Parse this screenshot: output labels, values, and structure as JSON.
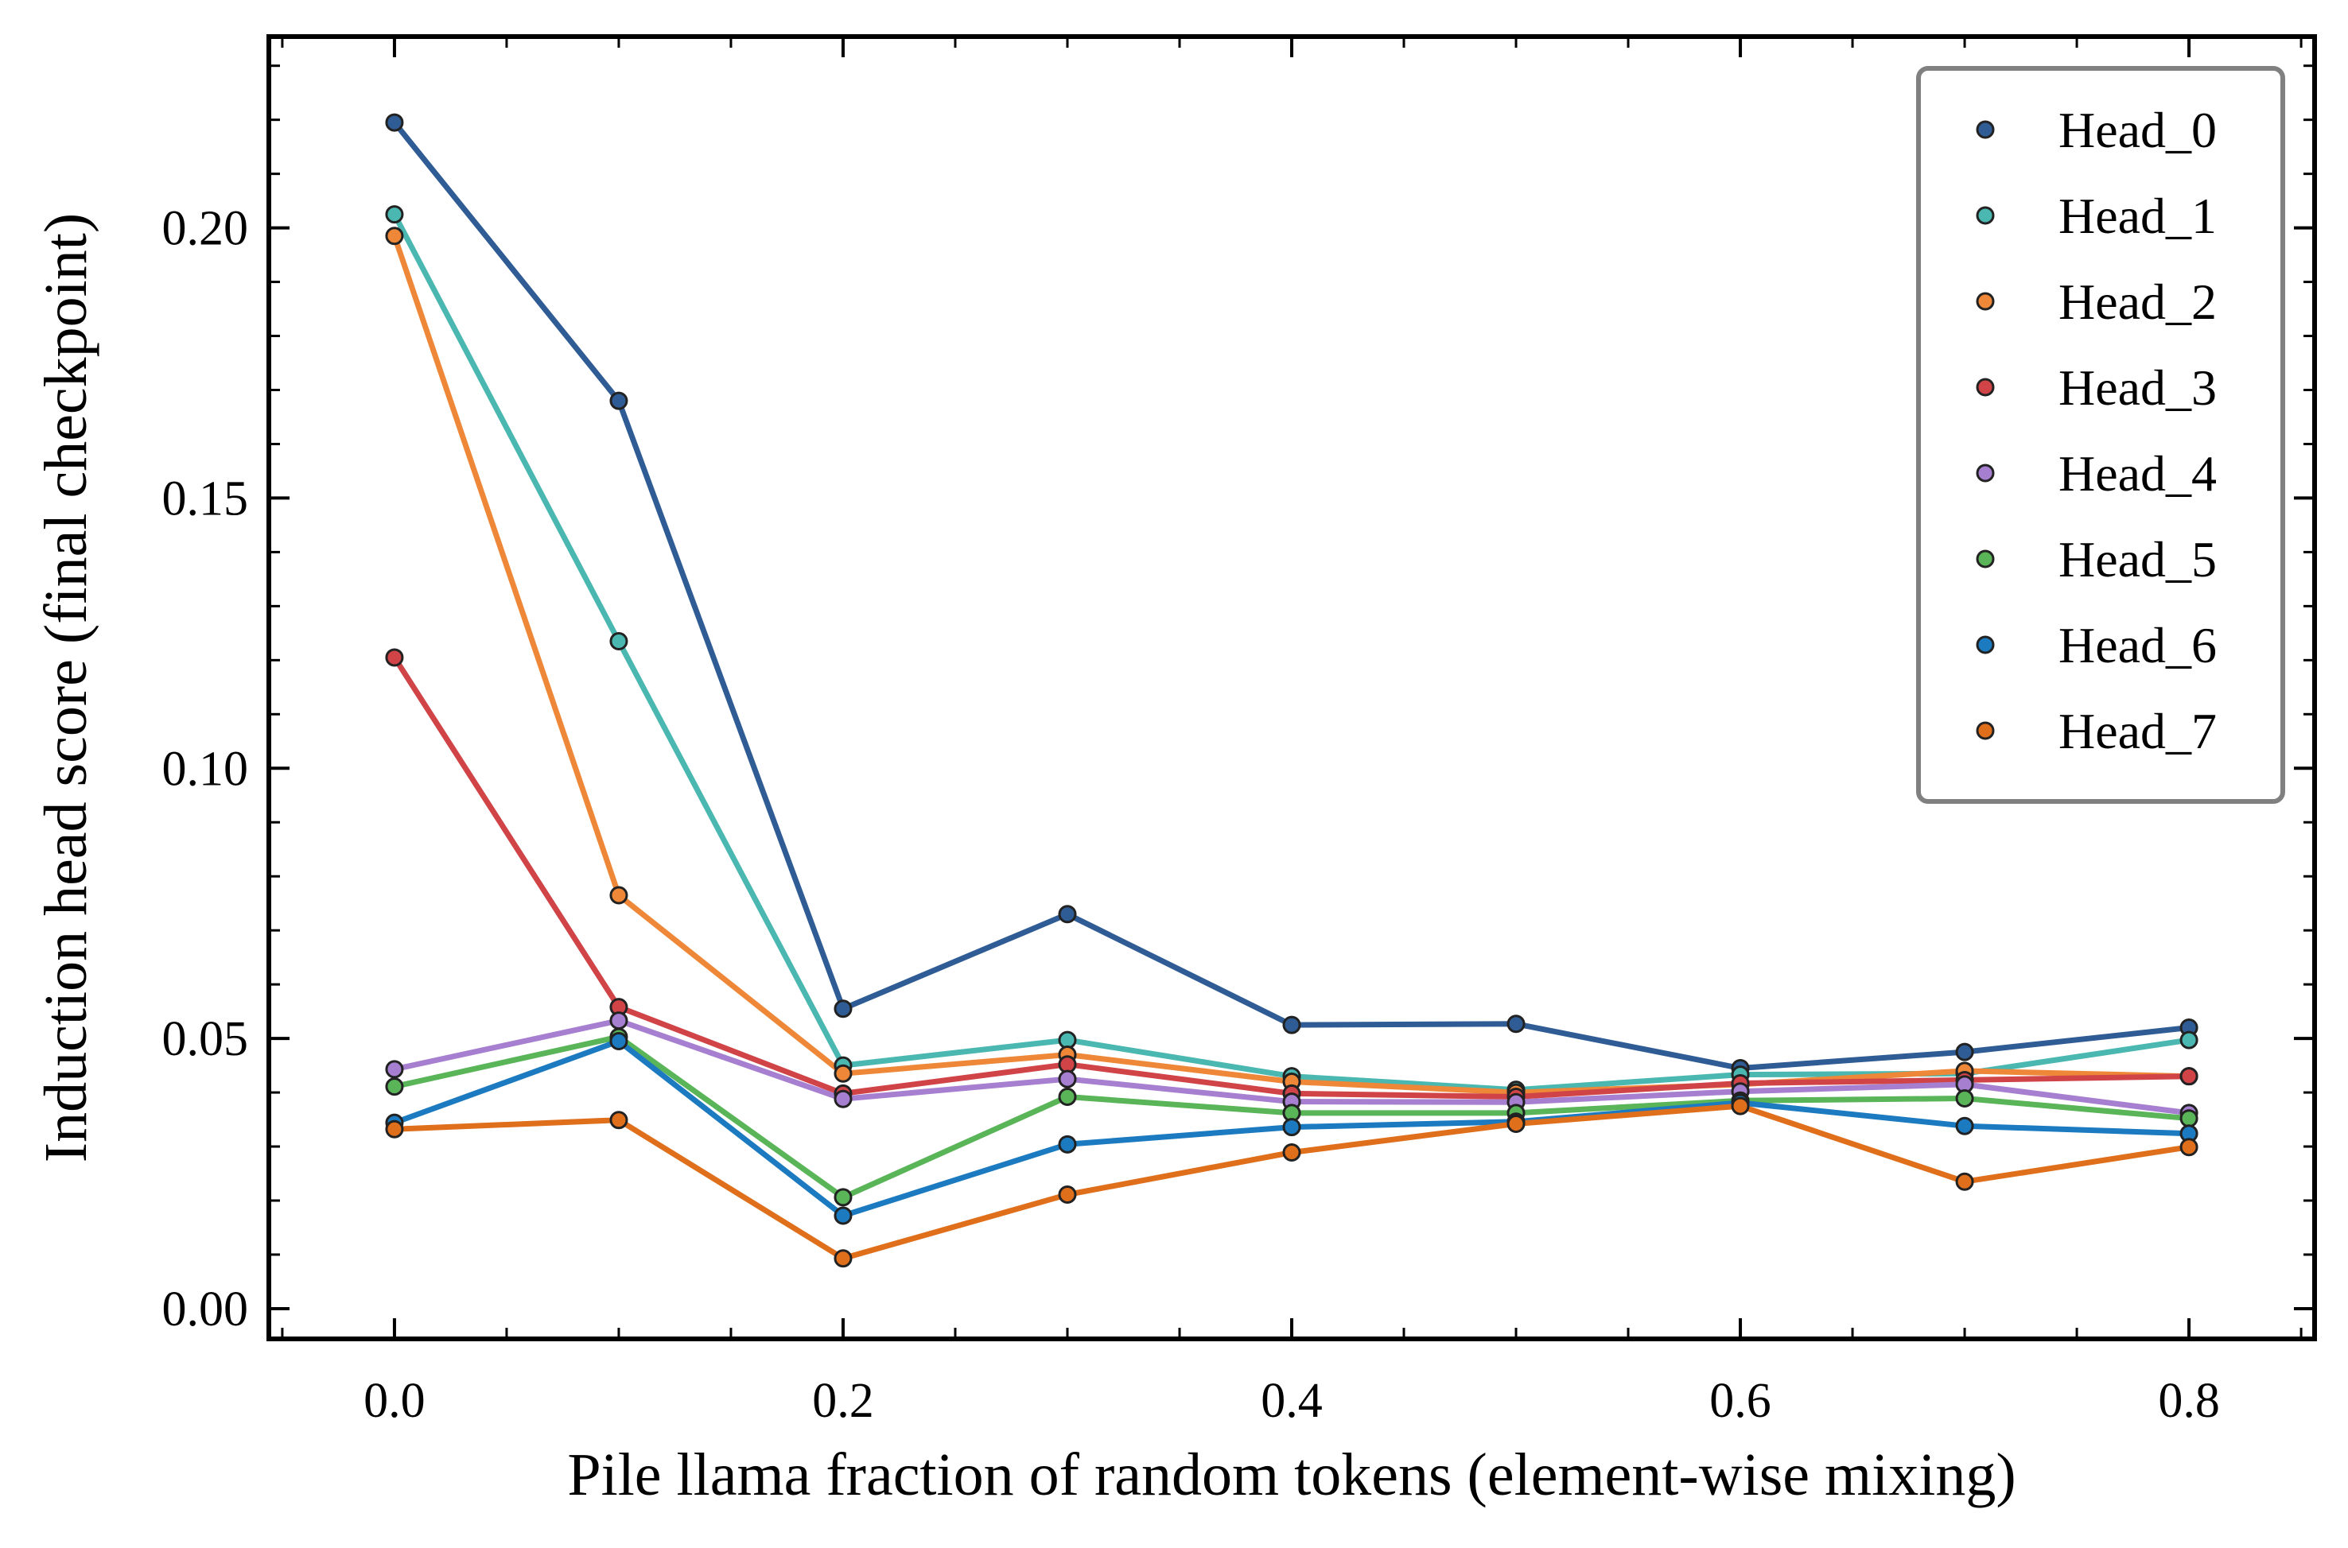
{
  "chart_data": {
    "type": "line",
    "title": "",
    "xlabel": "Pile llama fraction of random tokens (element-wise mixing)",
    "ylabel": "Induction head score (final checkpoint)",
    "xlim": [
      -0.056,
      0.856
    ],
    "ylim": [
      -0.0056,
      0.2354
    ],
    "x_ticks": [
      0.0,
      0.2,
      0.4,
      0.6,
      0.8
    ],
    "x_tick_labels": [
      "0.0",
      "0.2",
      "0.4",
      "0.6",
      "0.8"
    ],
    "y_ticks": [
      0.0,
      0.05,
      0.1,
      0.15,
      0.2
    ],
    "y_tick_labels": [
      "0.00",
      "0.05",
      "0.10",
      "0.15",
      "0.20"
    ],
    "x": [
      0.0,
      0.1,
      0.2,
      0.3,
      0.4,
      0.5,
      0.6,
      0.7,
      0.8
    ],
    "grid": false,
    "legend_position": "top-right",
    "series": [
      {
        "name": "Head_0",
        "color": "#2f5c94",
        "values": [
          0.2195,
          0.168,
          0.0555,
          0.073,
          0.0525,
          0.0527,
          0.0445,
          0.0475,
          0.052
        ]
      },
      {
        "name": "Head_1",
        "color": "#4ab8b0",
        "values": [
          0.2025,
          0.1235,
          0.045,
          0.0497,
          0.043,
          0.0405,
          0.0433,
          0.0435,
          0.0497
        ]
      },
      {
        "name": "Head_2",
        "color": "#ee8838",
        "values": [
          0.1985,
          0.0765,
          0.0435,
          0.047,
          0.042,
          0.04,
          0.0415,
          0.044,
          0.043
        ]
      },
      {
        "name": "Head_3",
        "color": "#d04448",
        "values": [
          0.1205,
          0.0558,
          0.0398,
          0.0452,
          0.0398,
          0.0392,
          0.0417,
          0.0423,
          0.043
        ]
      },
      {
        "name": "Head_4",
        "color": "#a77fd0",
        "values": [
          0.0443,
          0.0533,
          0.0388,
          0.0425,
          0.0383,
          0.0382,
          0.0402,
          0.0415,
          0.0362
        ]
      },
      {
        "name": "Head_5",
        "color": "#59b558",
        "values": [
          0.0411,
          0.0503,
          0.0206,
          0.0392,
          0.0362,
          0.0362,
          0.0385,
          0.0389,
          0.0352
        ]
      },
      {
        "name": "Head_6",
        "color": "#1b7ac0",
        "values": [
          0.0344,
          0.0495,
          0.0172,
          0.0304,
          0.0336,
          0.0346,
          0.0381,
          0.0338,
          0.0324
        ]
      },
      {
        "name": "Head_7",
        "color": "#e06f1c",
        "values": [
          0.0332,
          0.0349,
          0.0093,
          0.0211,
          0.0289,
          0.0342,
          0.0375,
          0.0235,
          0.0299
        ]
      }
    ]
  }
}
